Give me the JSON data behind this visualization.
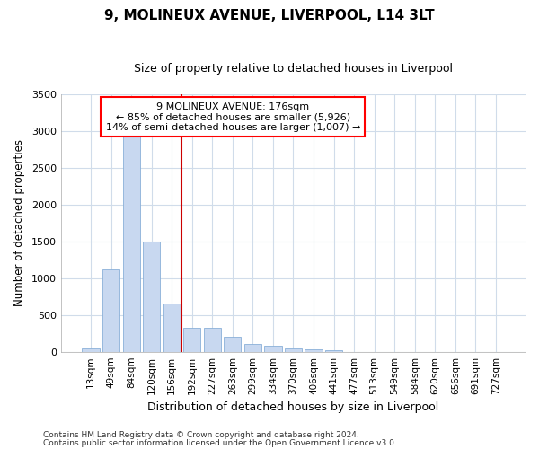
{
  "title": "9, MOLINEUX AVENUE, LIVERPOOL, L14 3LT",
  "subtitle": "Size of property relative to detached houses in Liverpool",
  "xlabel": "Distribution of detached houses by size in Liverpool",
  "ylabel": "Number of detached properties",
  "categories": [
    "13sqm",
    "49sqm",
    "84sqm",
    "120sqm",
    "156sqm",
    "192sqm",
    "227sqm",
    "263sqm",
    "299sqm",
    "334sqm",
    "370sqm",
    "406sqm",
    "441sqm",
    "477sqm",
    "513sqm",
    "549sqm",
    "584sqm",
    "620sqm",
    "656sqm",
    "691sqm",
    "727sqm"
  ],
  "values": [
    50,
    1120,
    2950,
    1500,
    660,
    330,
    330,
    200,
    100,
    85,
    50,
    30,
    20,
    0,
    0,
    0,
    0,
    0,
    0,
    0,
    0
  ],
  "bar_color": "#c8d8f0",
  "bar_edge_color": "#8ab0d8",
  "vline_color": "#cc0000",
  "vline_x_idx": 4.5,
  "annotation_title": "9 MOLINEUX AVENUE: 176sqm",
  "annotation_line1": "← 85% of detached houses are smaller (5,926)",
  "annotation_line2": "14% of semi-detached houses are larger (1,007) →",
  "footnote1": "Contains HM Land Registry data © Crown copyright and database right 2024.",
  "footnote2": "Contains public sector information licensed under the Open Government Licence v3.0.",
  "ylim": [
    0,
    3500
  ],
  "yticks": [
    0,
    500,
    1000,
    1500,
    2000,
    2500,
    3000,
    3500
  ],
  "bg_color": "#ffffff",
  "plot_bg_color": "#ffffff",
  "grid_color": "#d0dcea"
}
